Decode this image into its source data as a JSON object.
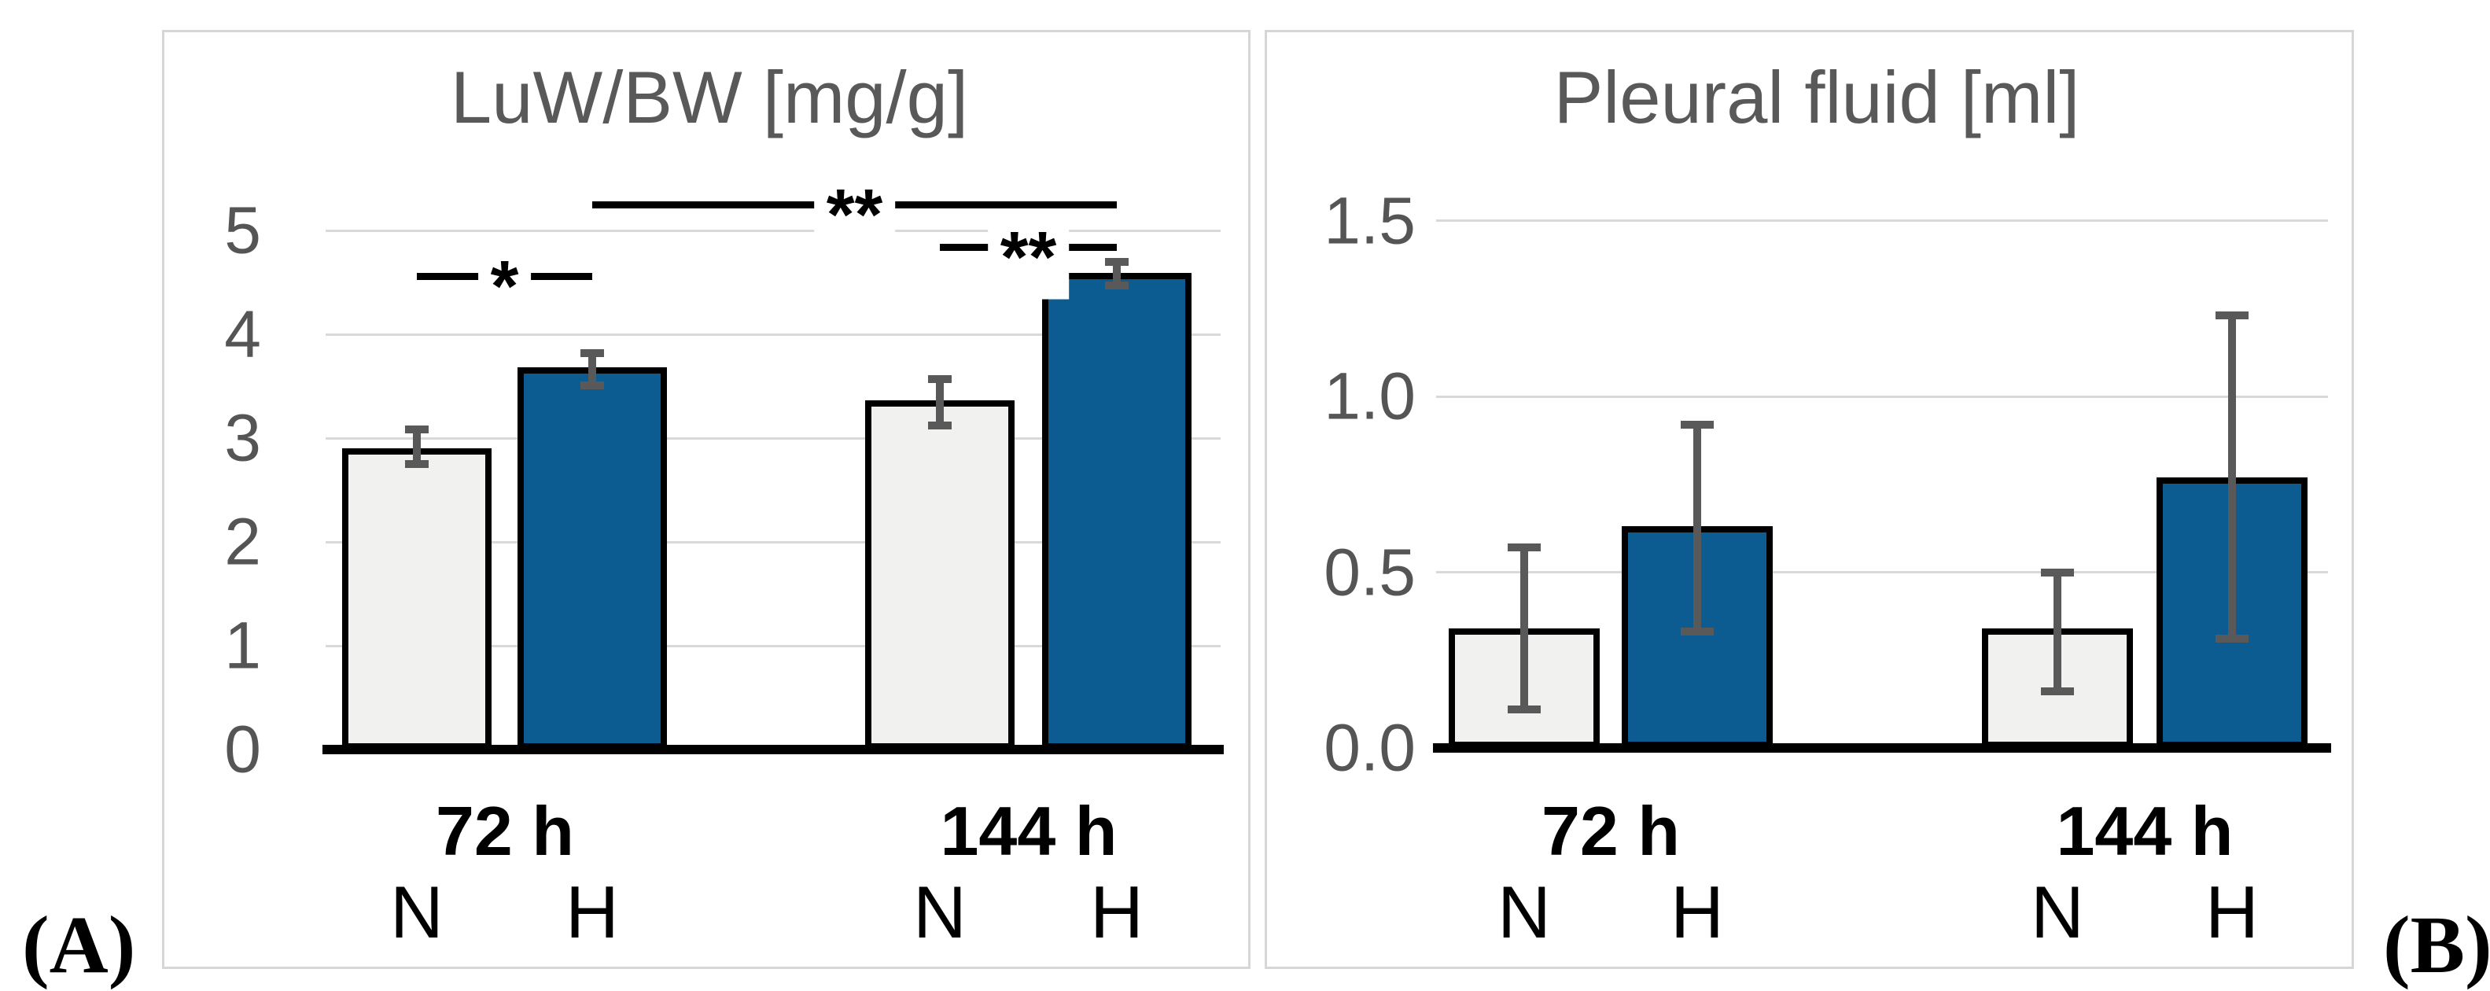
{
  "figure": {
    "panel_labels": [
      "(A)",
      "(B)"
    ]
  },
  "colors": {
    "background": "#FFFFFF",
    "normoxia_bar_fill": "#F1F1EF",
    "hyperoxia_bar_fill": "#0C5C91",
    "bar_border": "#000000",
    "error_bar": "#595959",
    "gridline": "#D9D9D9",
    "axis_tick_text": "#555555",
    "title_text": "#595959",
    "panel_border": "#D6D6D6",
    "significance_line": "#000000",
    "x_label_text": "#000000"
  },
  "chart_data": [
    {
      "id": "A",
      "panel_label": "(A)",
      "type": "bar",
      "title": "LuW/BW [mg/g]",
      "xlabel": "",
      "ylabel": "",
      "ylim": [
        0,
        5
      ],
      "yticks": [
        0,
        1,
        2,
        3,
        4,
        5
      ],
      "ytick_labels": [
        "0",
        "1",
        "2",
        "3",
        "4",
        "5"
      ],
      "grid": true,
      "legend": "none",
      "groups": [
        {
          "label": "72 h",
          "bars": [
            {
              "key": "72h-N",
              "label": "N",
              "value": 2.9,
              "err_low": 2.75,
              "err_high": 3.08
            },
            {
              "key": "72h-H",
              "label": "H",
              "value": 3.68,
              "err_low": 3.51,
              "err_high": 3.82
            }
          ]
        },
        {
          "label": "144 h",
          "bars": [
            {
              "key": "144h-N",
              "label": "N",
              "value": 3.36,
              "err_low": 3.12,
              "err_high": 3.57
            },
            {
              "key": "144h-H",
              "label": "H",
              "value": 4.59,
              "err_low": 4.47,
              "err_high": 4.7
            }
          ]
        }
      ],
      "significance": [
        {
          "label": "*",
          "from": "72h-N",
          "to": "72h-H",
          "y": 4.56
        },
        {
          "label": "**",
          "from": "144h-N",
          "to": "144h-H",
          "y": 4.84
        },
        {
          "label": "**",
          "from": "72h-H",
          "to": "144h-H",
          "y": 5.25
        }
      ]
    },
    {
      "id": "B",
      "panel_label": "(B)",
      "type": "bar",
      "title": "Pleural fluid [ml]",
      "xlabel": "",
      "ylabel": "",
      "ylim": [
        0,
        1.5
      ],
      "yticks": [
        0,
        0.5,
        1,
        1.5
      ],
      "ytick_labels": [
        "0.0",
        "0.5",
        "1.0",
        "1.5"
      ],
      "grid": true,
      "legend": "none",
      "groups": [
        {
          "label": "72 h",
          "bars": [
            {
              "key": "72h-N",
              "label": "N",
              "value": 0.34,
              "err_low": 0.11,
              "err_high": 0.57
            },
            {
              "key": "72h-H",
              "label": "H",
              "value": 0.63,
              "err_low": 0.33,
              "err_high": 0.92
            }
          ]
        },
        {
          "label": "144 h",
          "bars": [
            {
              "key": "144h-N",
              "label": "N",
              "value": 0.34,
              "err_low": 0.16,
              "err_high": 0.5
            },
            {
              "key": "144h-H",
              "label": "H",
              "value": 0.77,
              "err_low": 0.31,
              "err_high": 1.23
            }
          ]
        }
      ],
      "significance": []
    }
  ]
}
